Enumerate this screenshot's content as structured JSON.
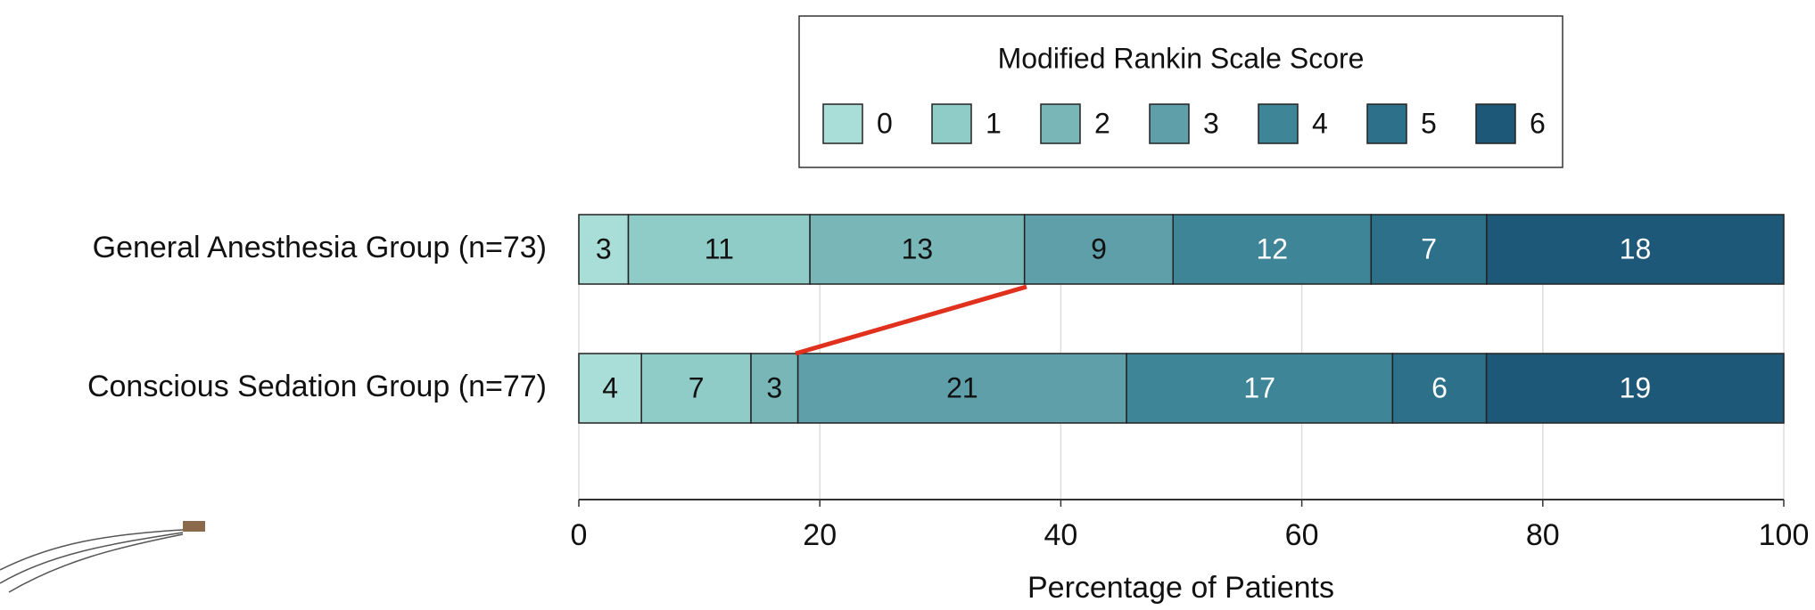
{
  "chart_data": {
    "type": "stacked_barh",
    "legend_title": "Modified Rankin Scale Score",
    "xlabel": "Percentage of Patients",
    "categories": [
      "General Anesthesia Group (n=73)",
      "Conscious Sedation Group (n=77)"
    ],
    "series": [
      {
        "name": "0",
        "color": "#a9ddd7",
        "values": [
          3,
          4
        ]
      },
      {
        "name": "1",
        "color": "#8fcbc7",
        "values": [
          11,
          7
        ]
      },
      {
        "name": "2",
        "color": "#78b6b7",
        "values": [
          13,
          3
        ]
      },
      {
        "name": "3",
        "color": "#5f9fa9",
        "values": [
          9,
          21
        ]
      },
      {
        "name": "4",
        "color": "#3f8598",
        "values": [
          12,
          17
        ]
      },
      {
        "name": "5",
        "color": "#2d7089",
        "values": [
          7,
          6
        ]
      },
      {
        "name": "6",
        "color": "#1e5878",
        "values": [
          18,
          19
        ]
      }
    ],
    "xlim": [
      0,
      100
    ],
    "xticks": [
      0,
      20,
      40,
      60,
      80,
      100
    ],
    "grid": true
  }
}
